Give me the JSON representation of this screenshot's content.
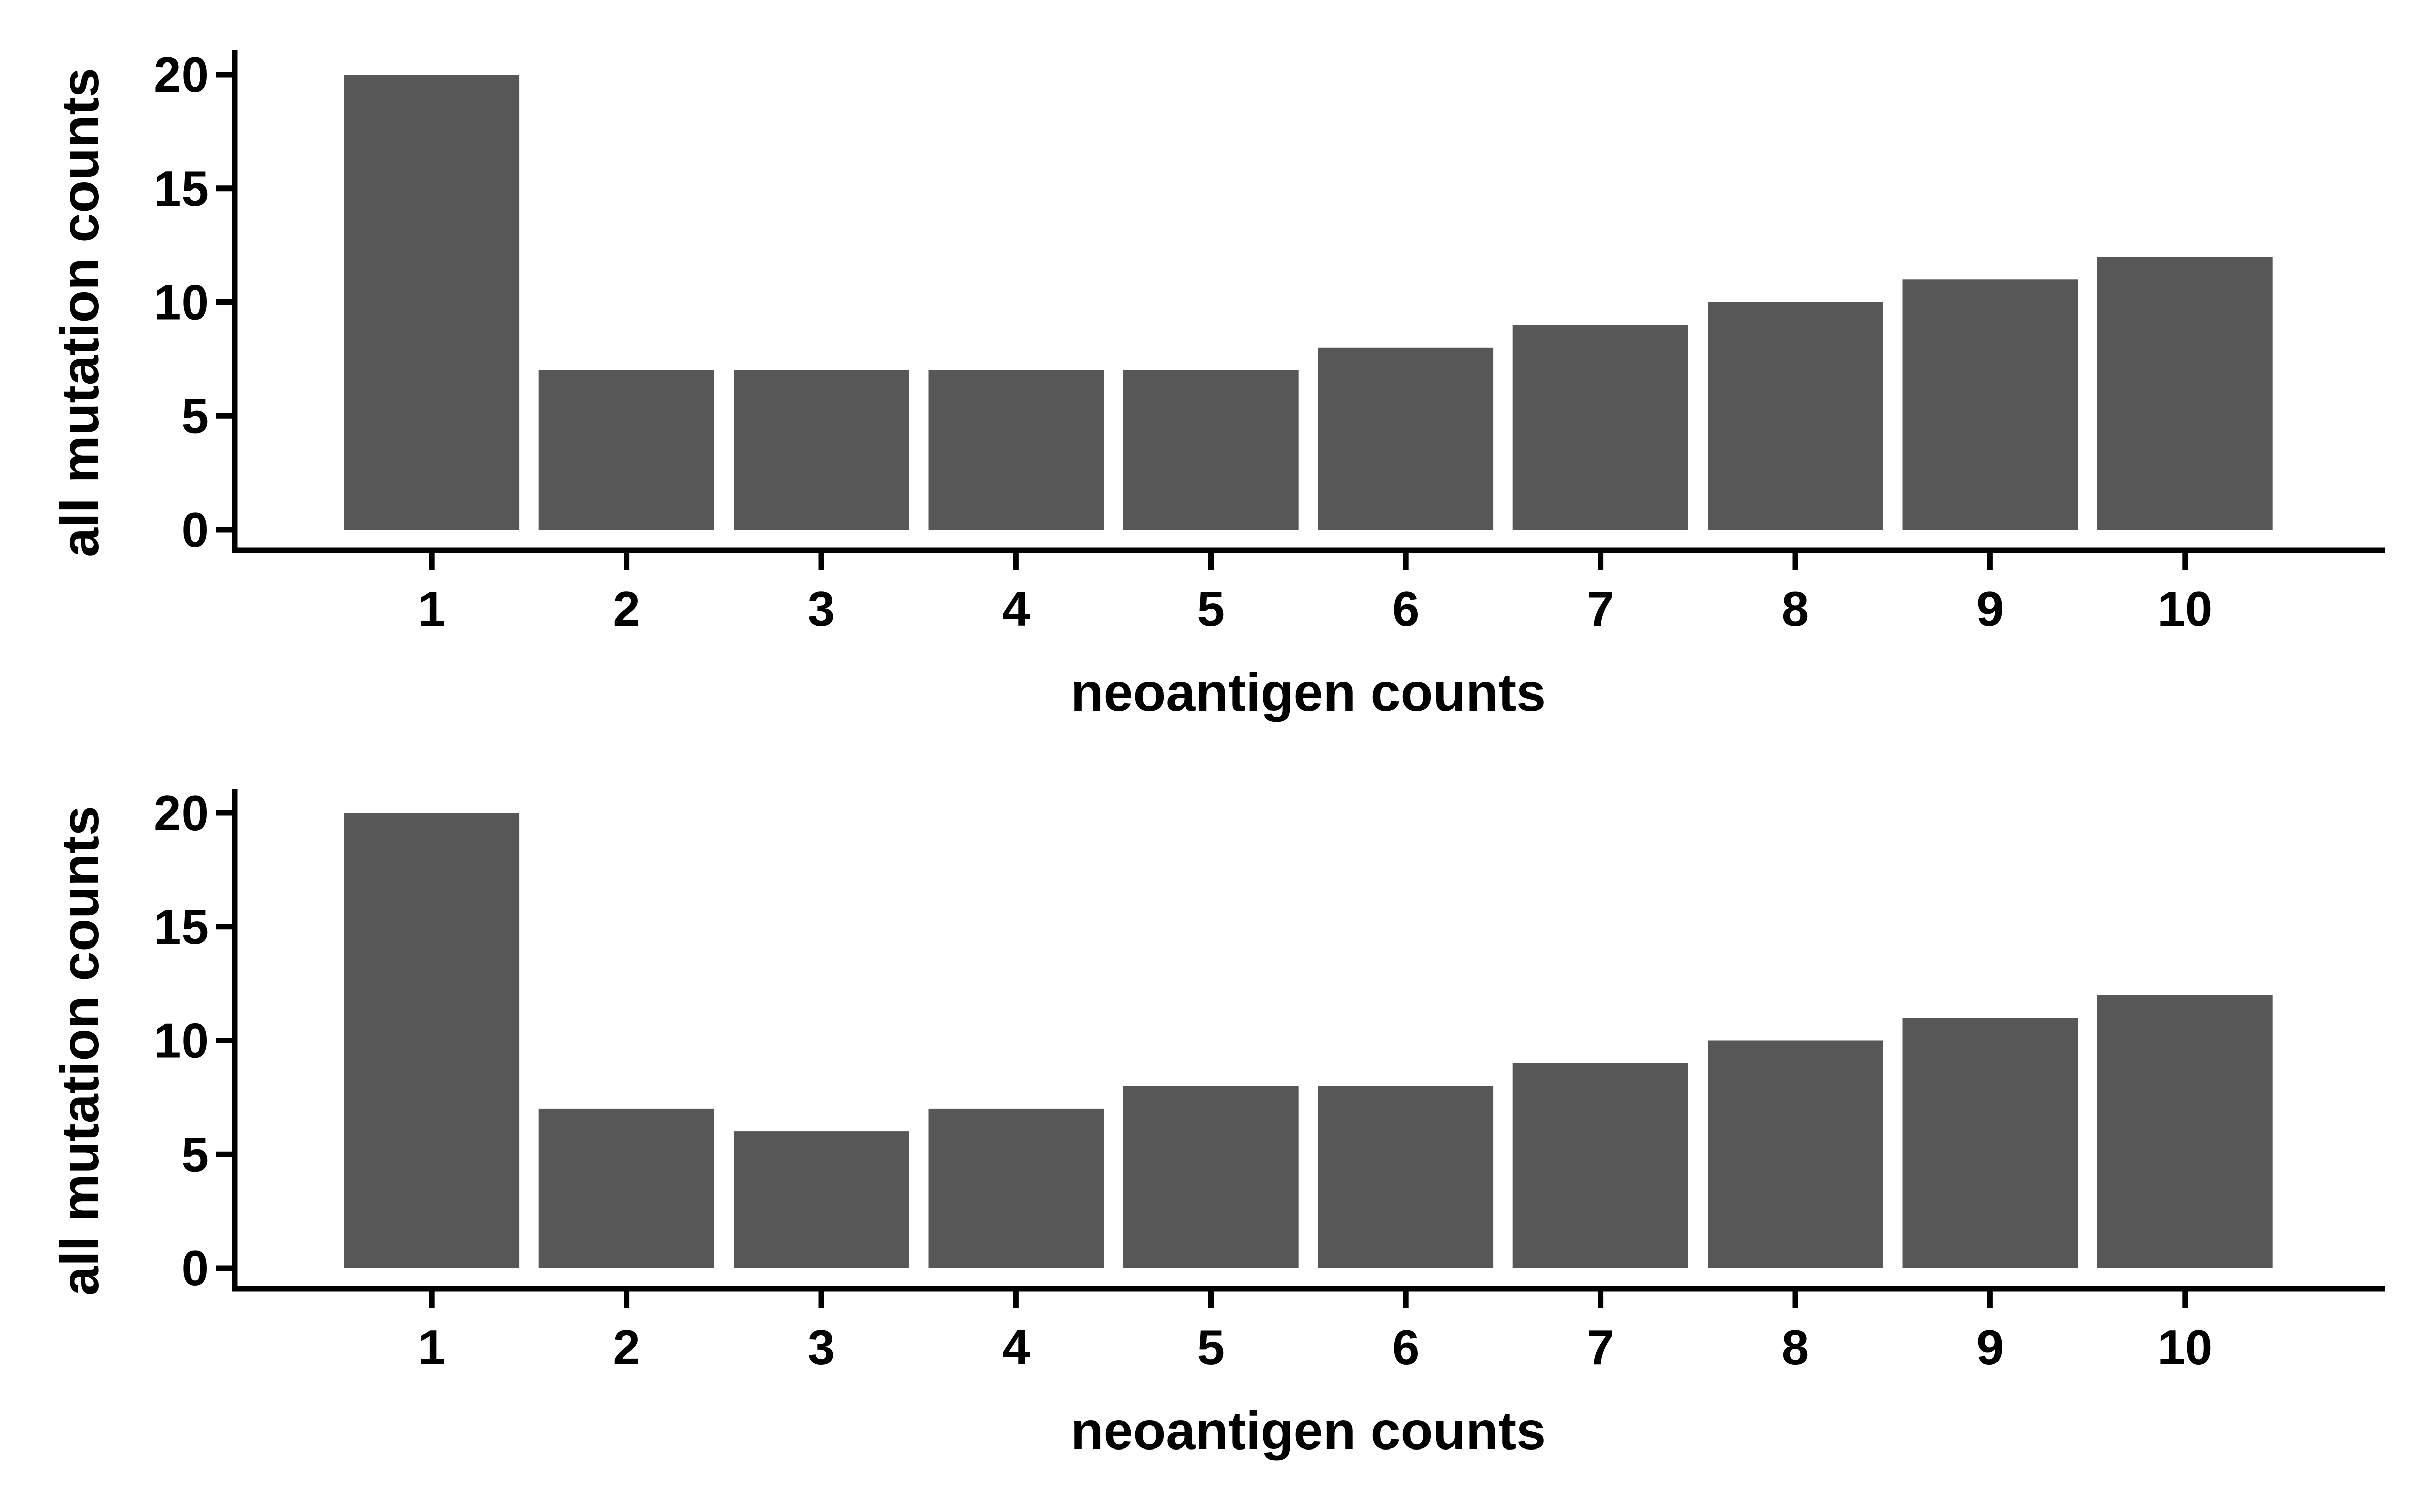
{
  "colors": {
    "bar": "#575757",
    "axis": "#000000",
    "background": "#ffffff"
  },
  "chart_data": [
    {
      "type": "bar",
      "title": "",
      "xlabel": "neoantigen counts",
      "ylabel": "all mutation counts",
      "categories": [
        "1",
        "2",
        "3",
        "4",
        "5",
        "6",
        "7",
        "8",
        "9",
        "10"
      ],
      "values": [
        20,
        7,
        7,
        7,
        7,
        8,
        9,
        10,
        11,
        12
      ],
      "ylim": [
        0,
        20
      ],
      "yticks": [
        0,
        5,
        10,
        15,
        20
      ],
      "grid": false,
      "legend": "none"
    },
    {
      "type": "bar",
      "title": "",
      "xlabel": "neoantigen counts",
      "ylabel": "all mutation counts",
      "categories": [
        "1",
        "2",
        "3",
        "4",
        "5",
        "6",
        "7",
        "8",
        "9",
        "10"
      ],
      "values": [
        20,
        7,
        6,
        7,
        8,
        8,
        9,
        10,
        11,
        12
      ],
      "ylim": [
        0,
        20
      ],
      "yticks": [
        0,
        5,
        10,
        15,
        20
      ],
      "grid": false,
      "legend": "none"
    }
  ]
}
